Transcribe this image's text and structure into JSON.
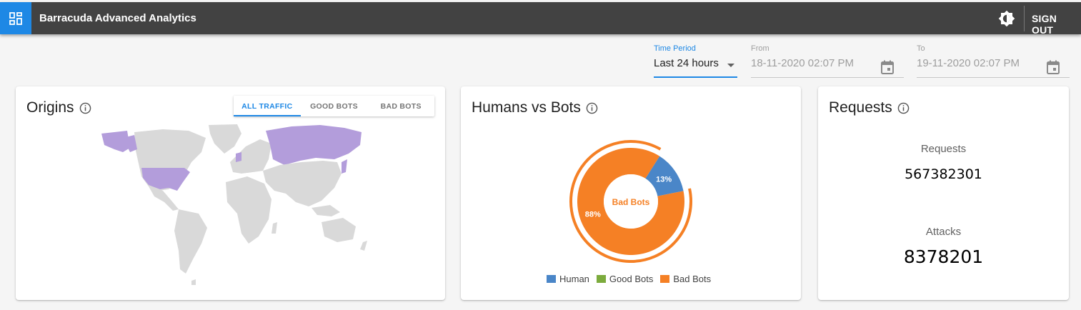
{
  "header": {
    "title": "Barracuda Advanced Analytics",
    "sign_out": "SIGN OUT",
    "brand_color": "#1e88e5",
    "bar_color": "#424242"
  },
  "filters": {
    "time_period": {
      "label": "Time Period",
      "value": "Last 24 hours"
    },
    "from": {
      "label": "From",
      "value": "18-11-2020 02:07 PM"
    },
    "to": {
      "label": "To",
      "value": "19-11-2020 02:07 PM"
    }
  },
  "origins": {
    "title": "Origins",
    "tabs": [
      {
        "label": "ALL TRAFFIC",
        "active": true
      },
      {
        "label": "GOOD BOTS",
        "active": false
      },
      {
        "label": "BAD BOTS",
        "active": false
      }
    ],
    "highlight_color": "#b39ddb",
    "base_color": "#d9d9d9"
  },
  "humans_vs_bots": {
    "title": "Humans vs Bots",
    "center_label": "Bad Bots",
    "slices": [
      {
        "label": "Human",
        "percent": 13,
        "percent_text": "13%",
        "color": "#4a86c8"
      },
      {
        "label": "Good Bots",
        "percent": 0,
        "percent_text": "",
        "color": "#7cab3d"
      },
      {
        "label": "Bad Bots",
        "percent": 88,
        "percent_text": "88%",
        "color": "#f58025"
      }
    ]
  },
  "requests": {
    "title": "Requests",
    "requests_label": "Requests",
    "requests_value": "567382301",
    "attacks_label": "Attacks",
    "attacks_value": "8378201"
  }
}
